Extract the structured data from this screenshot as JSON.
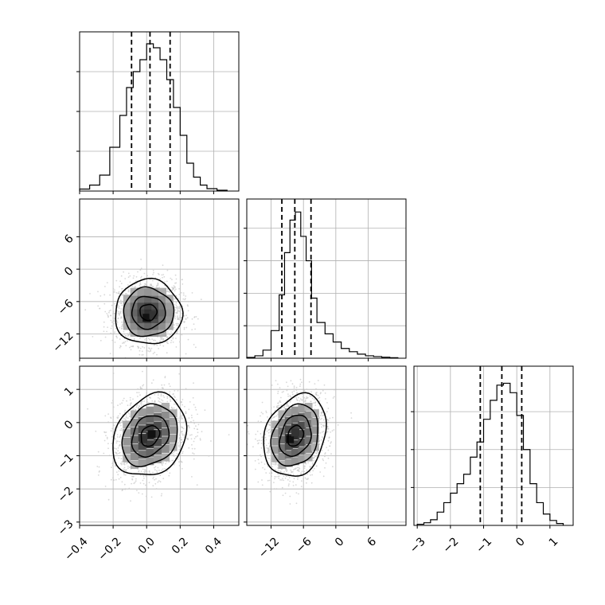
{
  "chart_data": {
    "type": "corner",
    "title": "",
    "parameters": [
      "",
      "",
      ""
    ],
    "axis_ranges": [
      [
        -0.4,
        0.55
      ],
      [
        -16.5,
        13
      ],
      [
        -3.1,
        1.7
      ]
    ],
    "tick_labels": [
      [
        "−0.4",
        "−0.2",
        "0.0",
        "0.2",
        "0.4"
      ],
      [
        "−12",
        "−6",
        "0",
        "6"
      ],
      [
        "−3",
        "−2",
        "−1",
        "0",
        "1"
      ]
    ],
    "ticks": [
      [
        -0.4,
        -0.2,
        0.0,
        0.2,
        0.4
      ],
      [
        -12,
        -6,
        0,
        6
      ],
      [
        -3,
        -2,
        -1,
        0,
        1
      ]
    ],
    "quantiles": [
      [
        -0.09,
        0.02,
        0.14
      ],
      [
        -10.0,
        -7.6,
        -4.6
      ],
      [
        -1.1,
        -0.45,
        0.15
      ]
    ],
    "grid": true,
    "marginals": [
      {
        "bin_edges": [
          -0.4,
          -0.34,
          -0.28,
          -0.22,
          -0.16,
          -0.12,
          -0.08,
          -0.04,
          0.0,
          0.04,
          0.08,
          0.12,
          0.16,
          0.2,
          0.24,
          0.28,
          0.32,
          0.36,
          0.42,
          0.48
        ],
        "counts": [
          0.5,
          1.5,
          4,
          11,
          19,
          26,
          30,
          33,
          37,
          36,
          33,
          28,
          21,
          14,
          7,
          3.5,
          1.5,
          0.6,
          0.2
        ],
        "ytick_values": [
          10,
          20,
          30
        ],
        "ymax": 40
      },
      {
        "bin_edges": [
          -16.5,
          -15,
          -13.5,
          -12,
          -10.5,
          -9.5,
          -8.5,
          -7.5,
          -6.5,
          -5.5,
          -4.5,
          -3.5,
          -2,
          -0.5,
          1,
          2.5,
          4,
          5.5,
          7,
          8.5,
          10,
          11.5
        ],
        "counts": [
          0.5,
          1.5,
          5,
          17,
          39,
          65,
          85,
          90,
          75,
          60,
          37,
          22,
          15,
          10,
          6,
          4,
          2.5,
          1.5,
          1,
          0.6,
          0.3
        ],
        "ytick_values": [
          20,
          40,
          60,
          80
        ],
        "ymax": 98
      },
      {
        "bin_edges": [
          -3.0,
          -2.8,
          -2.6,
          -2.4,
          -2.2,
          -2.0,
          -1.8,
          -1.6,
          -1.4,
          -1.2,
          -1.0,
          -0.8,
          -0.6,
          -0.4,
          -0.2,
          0.0,
          0.2,
          0.4,
          0.6,
          0.8,
          1.0,
          1.2,
          1.4
        ],
        "counts": [
          0.3,
          0.7,
          1.5,
          3.5,
          6,
          8.5,
          11,
          13.5,
          18,
          22,
          28,
          33,
          37,
          37.5,
          35,
          29,
          20,
          11,
          6,
          3,
          1.3,
          0.5
        ],
        "ytick_values": [
          10,
          20,
          30
        ],
        "ymax": 42
      }
    ],
    "pairs": [
      {
        "row": 1,
        "col": 0,
        "center": [
          0.01,
          -8.0
        ],
        "spread": [
          0.1,
          3.0
        ],
        "rho": 0.0,
        "contours": [
          0.5,
          1.0,
          1.5,
          2.0
        ],
        "density_peak": [
          0.0,
          -9.0
        ],
        "secondary_peak": [
          0.04,
          -8.5
        ]
      },
      {
        "row": 2,
        "col": 0,
        "center": [
          0.02,
          -0.4
        ],
        "spread": [
          0.11,
          0.62
        ],
        "rho": 0.22,
        "contours": [
          0.5,
          1.0,
          1.5,
          2.0
        ],
        "density_peak": [
          0.03,
          -0.35
        ],
        "secondary_peak": [
          -0.02,
          -0.5
        ]
      },
      {
        "row": 2,
        "col": 1,
        "center": [
          -7.5,
          -0.4
        ],
        "spread": [
          2.9,
          0.62
        ],
        "rho": 0.22,
        "contours": [
          0.5,
          1.0,
          1.5,
          2.0
        ],
        "density_peak": [
          -8.5,
          -0.5
        ],
        "secondary_peak": [
          -7.5,
          -0.3
        ]
      }
    ],
    "colors": {
      "line": "#000000",
      "points": "#c8c8c8",
      "grid": "#b0b0b0",
      "background": "#ffffff"
    }
  }
}
